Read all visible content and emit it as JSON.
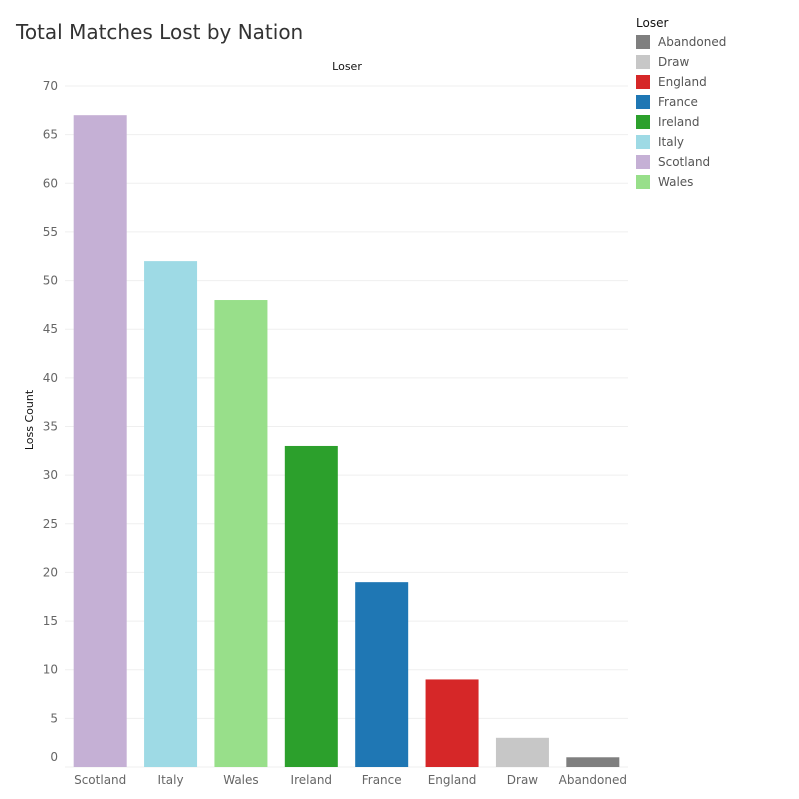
{
  "title": "Total Matches Lost by Nation",
  "chart_data": {
    "type": "bar",
    "title": "Total Matches Lost by Nation",
    "column_header": "Loser",
    "xlabel": "",
    "ylabel": "Loss Count",
    "ylim": [
      0,
      70
    ],
    "yticks": [
      0,
      5,
      10,
      15,
      20,
      25,
      30,
      35,
      40,
      45,
      50,
      55,
      60,
      65,
      70
    ],
    "categories": [
      "Scotland",
      "Italy",
      "Wales",
      "Ireland",
      "France",
      "England",
      "Draw",
      "Abandoned"
    ],
    "values": [
      67,
      52,
      48,
      33,
      19,
      9,
      3,
      1
    ],
    "colors": [
      "#c5b0d5",
      "#9edae5",
      "#98df8a",
      "#2ca02c",
      "#1f77b4",
      "#d62728",
      "#c7c7c7",
      "#7f7f7f"
    ],
    "grid": true,
    "legend_position": "top-right",
    "legend": {
      "title": "Loser",
      "items": [
        {
          "label": "Abandoned",
          "color": "#7f7f7f"
        },
        {
          "label": "Draw",
          "color": "#c7c7c7"
        },
        {
          "label": "England",
          "color": "#d62728"
        },
        {
          "label": "France",
          "color": "#1f77b4"
        },
        {
          "label": "Ireland",
          "color": "#2ca02c"
        },
        {
          "label": "Italy",
          "color": "#9edae5"
        },
        {
          "label": "Scotland",
          "color": "#c5b0d5"
        },
        {
          "label": "Wales",
          "color": "#98df8a"
        }
      ]
    }
  }
}
